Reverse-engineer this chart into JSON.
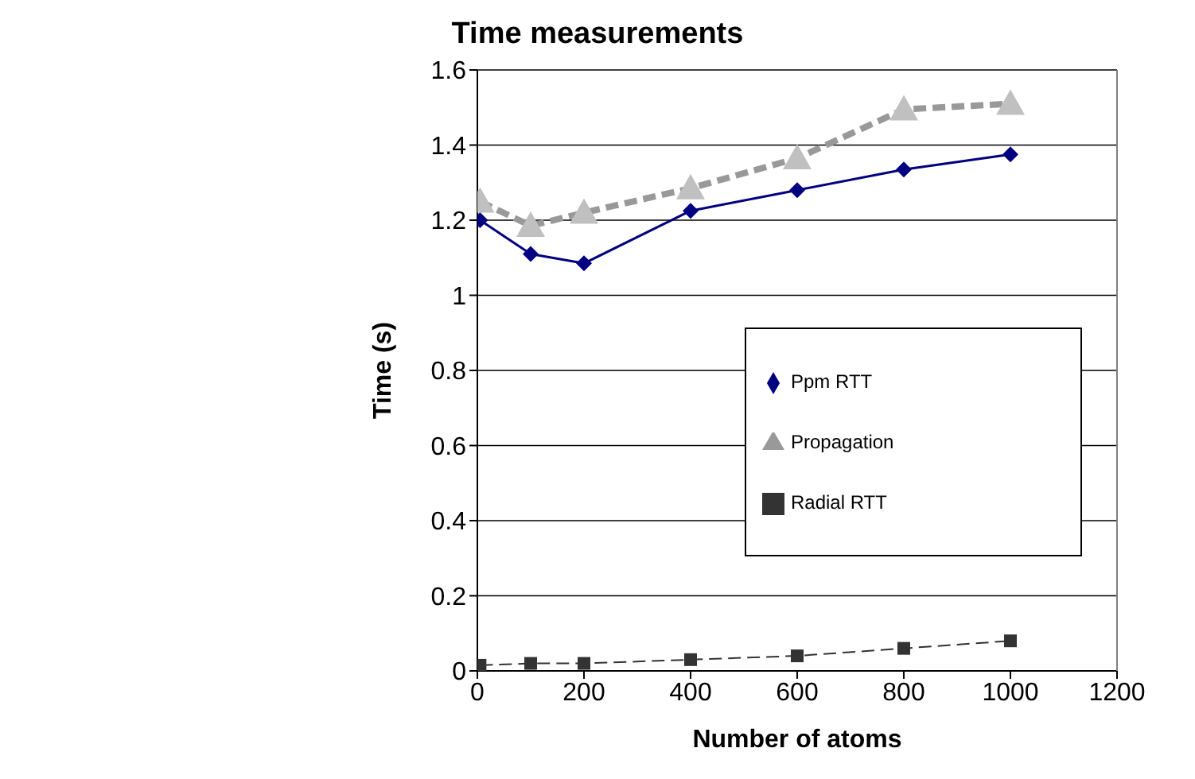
{
  "chart_data": {
    "type": "line",
    "title": "Time measurements",
    "xlabel": "Number of atoms",
    "ylabel": "Time (s)",
    "x": [
      5,
      100,
      200,
      400,
      600,
      800,
      1000
    ],
    "series": [
      {
        "name": "Ppm RTT",
        "color": "#000080",
        "marker": "diamond",
        "line_style": "solid",
        "values": [
          1.2,
          1.11,
          1.085,
          1.225,
          1.28,
          1.335,
          1.375
        ]
      },
      {
        "name": "Radial RTT",
        "color": "#333333",
        "marker": "square",
        "line_style": "dashed",
        "values": [
          0.015,
          0.02,
          0.02,
          0.03,
          0.04,
          0.06,
          0.08
        ]
      },
      {
        "name": "Propagation",
        "color": "#999999",
        "marker": "triangle",
        "line_style": "dashed",
        "values": [
          1.25,
          1.185,
          1.22,
          1.285,
          1.365,
          1.495,
          1.51
        ]
      }
    ],
    "xlim": [
      0,
      1200
    ],
    "xticks": [
      0,
      200,
      400,
      600,
      800,
      1000,
      1200
    ],
    "ylim": [
      0,
      1.6
    ],
    "yticks": [
      0,
      0.2,
      0.4,
      0.6,
      0.8,
      1,
      1.2,
      1.4,
      1.6
    ],
    "grid": "y",
    "legend": "right"
  }
}
